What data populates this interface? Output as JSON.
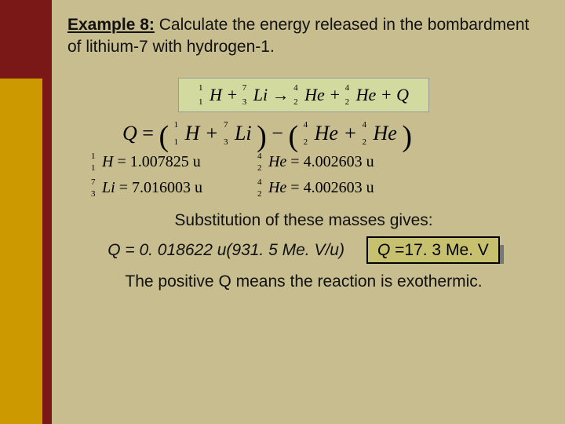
{
  "colors": {
    "sidebar_top": "#7a1818",
    "sidebar_bottom": "#cc9a00",
    "edge_strip": "#7a1818",
    "main_bg": "#c8bd8f",
    "reaction_box_bg": "#d2da9f",
    "answer_bg": "#c7c06e"
  },
  "heading": {
    "lead": "Example 8:",
    "rest": " Calculate the energy released in the bombardment of lithium-7 with hydrogen-1."
  },
  "reaction": {
    "n1": {
      "a": "1",
      "z": "1",
      "sym": "H"
    },
    "n2": {
      "a": "7",
      "z": "3",
      "sym": "Li"
    },
    "n3": {
      "a": "4",
      "z": "2",
      "sym": "He"
    },
    "n4": {
      "a": "4",
      "z": "2",
      "sym": "He"
    },
    "arrow": "→",
    "plus": "+",
    "tail": "+ Q"
  },
  "qline": {
    "Q": "Q",
    "eq": " = ",
    "minus": " − "
  },
  "masses": {
    "h": {
      "a": "1",
      "z": "1",
      "sym": "H",
      "val": " = 1.007825 ",
      "unit": "u"
    },
    "li": {
      "a": "7",
      "z": "3",
      "sym": "Li",
      "val": " = 7.016003 ",
      "unit": "u"
    },
    "he1": {
      "a": "4",
      "z": "2",
      "sym": "He",
      "val": " = 4.002603 ",
      "unit": "u"
    },
    "he2": {
      "a": "4",
      "z": "2",
      "sym": "He",
      "val": " = 4.002603 ",
      "unit": "u"
    }
  },
  "sub_text": "Substitution of these masses gives:",
  "result": {
    "lhs": "Q = 0. 018622 u(931. 5 Me. V/u)",
    "answer_q": "Q ",
    "answer_val": "=17. 3 Me. V"
  },
  "conclusion": "The positive Q means the reaction is exothermic."
}
